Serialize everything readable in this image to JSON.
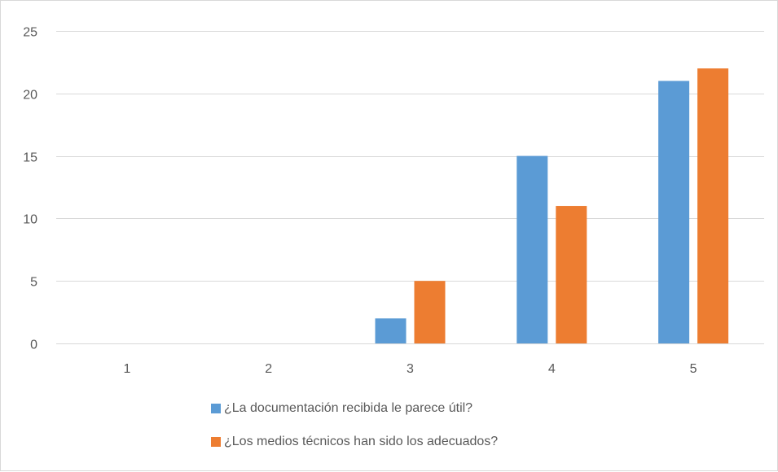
{
  "chart_data": {
    "type": "bar",
    "categories": [
      "1",
      "2",
      "3",
      "4",
      "5"
    ],
    "series": [
      {
        "name": "¿La documentación recibida le parece útil?",
        "color": "#5b9bd5",
        "values": [
          0,
          0,
          2,
          15,
          21
        ]
      },
      {
        "name": "¿Los medios técnicos han sido los adecuados?",
        "color": "#ed7d31",
        "values": [
          0,
          0,
          5,
          11,
          22
        ]
      }
    ],
    "y_ticks": [
      "0",
      "5",
      "10",
      "15",
      "20",
      "25"
    ],
    "ylim": [
      0,
      25
    ],
    "grid": true,
    "legend_position": "bottom",
    "gridline_color": "#d9d9d9",
    "axis_label_color": "#595959"
  }
}
